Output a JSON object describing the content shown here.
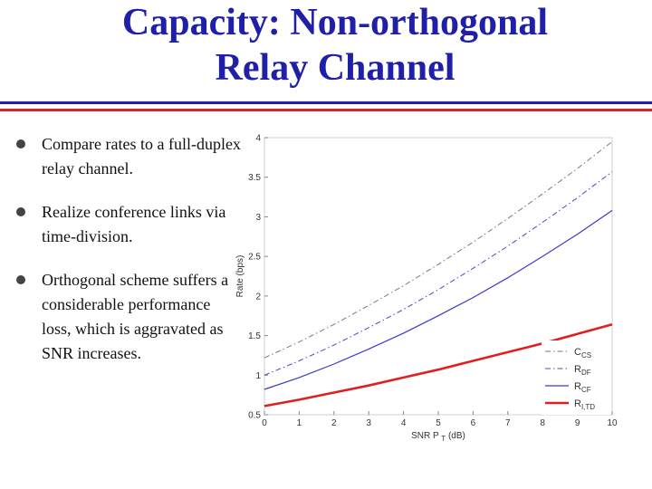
{
  "slide": {
    "title_line1": "Capacity: Non-orthogonal",
    "title_line2": "Relay Channel",
    "bullets": [
      "Compare rates to a full-duplex relay channel.",
      "Realize conference links via time-division.",
      "Orthogonal scheme suffers a considerable performance loss, which is aggravated as SNR increases."
    ]
  },
  "colors": {
    "title": "#1f1fa8",
    "rule_top": "#1f1fa8",
    "rule_bottom": "#cc2a2a"
  },
  "chart_data": {
    "type": "line",
    "title": "",
    "xlabel": "SNR P",
    "xlabel_sub": "T",
    "xlabel_unit": "(dB)",
    "ylabel": "Rate (bps)",
    "xlim": [
      0,
      10
    ],
    "ylim": [
      0.5,
      4
    ],
    "xticks": [
      "0",
      "1",
      "2",
      "3",
      "4",
      "5",
      "6",
      "7",
      "8",
      "9",
      "10"
    ],
    "yticks": [
      "0.5",
      "1",
      "1.5",
      "2",
      "2.5",
      "3",
      "3.5",
      "4"
    ],
    "x": [
      0,
      1,
      2,
      3,
      4,
      5,
      6,
      7,
      8,
      9,
      10
    ],
    "legend_position": "bottom-right",
    "series": [
      {
        "name": "C",
        "sub": "CS",
        "style": "dashdot",
        "color": "#7a7a7a",
        "values": [
          1.22,
          1.42,
          1.64,
          1.88,
          2.13,
          2.4,
          2.68,
          2.98,
          3.29,
          3.61,
          3.95
        ]
      },
      {
        "name": "R",
        "sub": "DF",
        "style": "dashdot",
        "color": "#4a4acd",
        "values": [
          1.0,
          1.18,
          1.38,
          1.6,
          1.83,
          2.08,
          2.35,
          2.63,
          2.93,
          3.24,
          3.57
        ]
      },
      {
        "name": "R",
        "sub": "CF",
        "style": "solid",
        "color": "#3a3ac8",
        "values": [
          0.82,
          0.97,
          1.14,
          1.33,
          1.53,
          1.75,
          1.98,
          2.23,
          2.5,
          2.78,
          3.08
        ]
      },
      {
        "name": "R",
        "sub": "I,TD",
        "style": "solid-thick",
        "color": "#e02020",
        "values": [
          0.61,
          0.69,
          0.78,
          0.87,
          0.97,
          1.07,
          1.18,
          1.29,
          1.4,
          1.52,
          1.64
        ]
      }
    ]
  }
}
